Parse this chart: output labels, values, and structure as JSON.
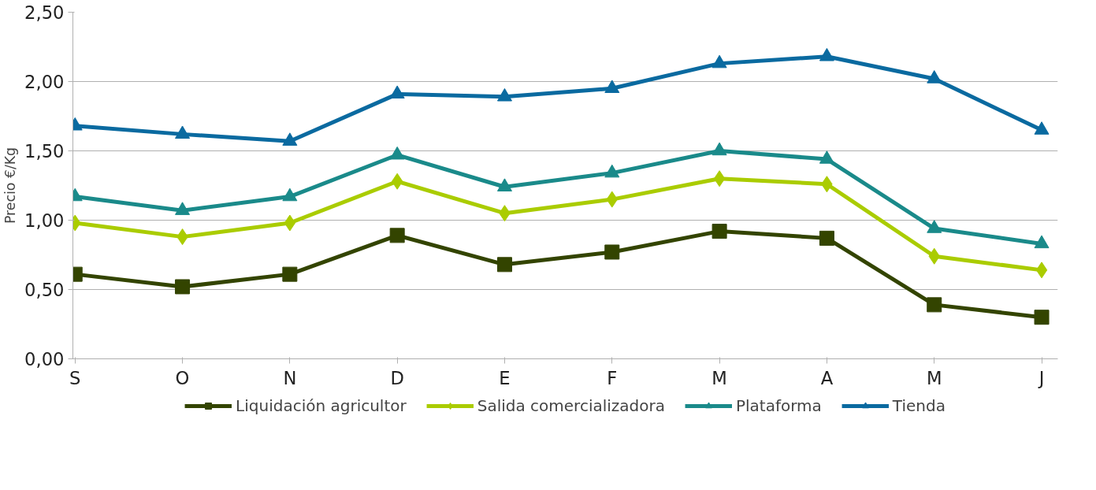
{
  "chart_data": {
    "type": "line",
    "ylabel": "Precio €/Kg",
    "categories": [
      "S",
      "O",
      "N",
      "D",
      "E",
      "F",
      "M",
      "A",
      "M",
      "J"
    ],
    "ylim": [
      0,
      2.5
    ],
    "yticks": [
      {
        "value": 0,
        "label": "0,00"
      },
      {
        "value": 0.5,
        "label": "0,50"
      },
      {
        "value": 1,
        "label": "1,00"
      },
      {
        "value": 1.5,
        "label": "1,50"
      },
      {
        "value": 2,
        "label": "2,00"
      },
      {
        "value": 2.5,
        "label": "2,50"
      }
    ],
    "grid": "y",
    "legend": "bottom",
    "line_style": "solid",
    "series": [
      {
        "name": "Liquidación agricultor",
        "color": "#334400",
        "marker": "square",
        "values": [
          0.61,
          0.52,
          0.61,
          0.89,
          0.68,
          0.77,
          0.92,
          0.87,
          0.39,
          0.3
        ]
      },
      {
        "name": "Salida comercializadora",
        "color": "#aacc00",
        "marker": "diamond",
        "values": [
          0.98,
          0.88,
          0.98,
          1.28,
          1.05,
          1.15,
          1.3,
          1.26,
          0.74,
          0.64
        ]
      },
      {
        "name": "Plataforma",
        "color": "#1a8a8a",
        "marker": "triangle",
        "values": [
          1.17,
          1.07,
          1.17,
          1.47,
          1.24,
          1.34,
          1.5,
          1.44,
          0.94,
          0.83
        ]
      },
      {
        "name": "Tienda",
        "color": "#0a6aa0",
        "marker": "triangle",
        "values": [
          1.68,
          1.62,
          1.57,
          1.91,
          1.89,
          1.95,
          2.13,
          2.18,
          2.02,
          1.65
        ]
      }
    ]
  }
}
